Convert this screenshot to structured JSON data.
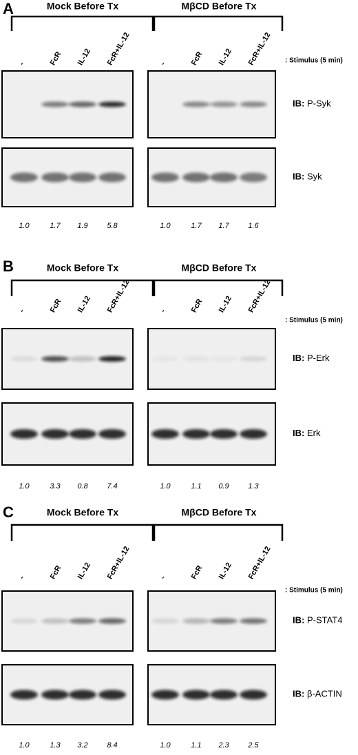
{
  "panels": [
    {
      "label": "A",
      "stimulus": ": Stimulus (5 min)",
      "groups": [
        {
          "title": "Mock Before Tx",
          "lanes": [
            "-",
            "FcR",
            "IL-12",
            "FcR+IL-12"
          ],
          "quant": [
            "1.0",
            "1.7",
            "1.9",
            "5.8"
          ]
        },
        {
          "title": "MβCD Before Tx",
          "lanes": [
            "-",
            "FcR",
            "IL-12",
            "FcR+IL-12"
          ],
          "quant": [
            "1.0",
            "1.7",
            "1.7",
            "1.6"
          ]
        }
      ],
      "blots": [
        {
          "prefix": "IB:",
          "target": "P-Syk"
        },
        {
          "prefix": "IB:",
          "target": "Syk"
        }
      ]
    },
    {
      "label": "B",
      "stimulus": ": Stimulus (5 min)",
      "groups": [
        {
          "title": "Mock Before Tx",
          "lanes": [
            "-",
            "FcR",
            "IL-12",
            "FcR+IL-12"
          ],
          "quant": [
            "1.0",
            "3.3",
            "0.8",
            "7.4"
          ]
        },
        {
          "title": "MβCD Before Tx",
          "lanes": [
            "-",
            "FcR",
            "IL-12",
            "FcR+IL-12"
          ],
          "quant": [
            "1.0",
            "1.1",
            "0.9",
            "1.3"
          ]
        }
      ],
      "blots": [
        {
          "prefix": "IB:",
          "target": "P-Erk"
        },
        {
          "prefix": "IB:",
          "target": "Erk"
        }
      ]
    },
    {
      "label": "C",
      "stimulus": ": Stimulus (5 min)",
      "groups": [
        {
          "title": "Mock Before Tx",
          "lanes": [
            "-",
            "FcR",
            "IL-12",
            "FcR+IL-12"
          ],
          "quant": [
            "1.0",
            "1.3",
            "3.2",
            "8.4"
          ]
        },
        {
          "title": "MβCD Before Tx",
          "lanes": [
            "-",
            "FcR",
            "IL-12",
            "FcR+IL-12"
          ],
          "quant": [
            "1.0",
            "1.1",
            "2.3",
            "2.5"
          ]
        }
      ],
      "blots": [
        {
          "prefix": "IB:",
          "target": "P-STAT4"
        },
        {
          "prefix": "IB:",
          "target": "β-ACTIN"
        }
      ]
    }
  ]
}
